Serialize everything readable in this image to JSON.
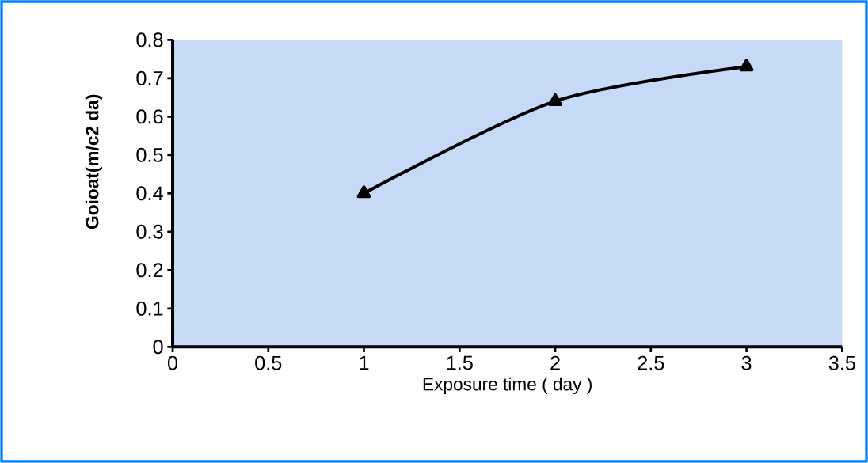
{
  "chart_data": {
    "type": "line",
    "xlabel": "Exposure time ( day )",
    "ylabel": "Goioat(m/c2  da)",
    "x": [
      1,
      2,
      3
    ],
    "series": [
      {
        "color": "#000000",
        "values": [
          0.4,
          0.64,
          0.73
        ]
      }
    ],
    "xlim": [
      0,
      3.5
    ],
    "xticks": [
      0,
      0.5,
      1,
      1.5,
      2,
      2.5,
      3,
      3.5
    ],
    "ylim": [
      0,
      0.8
    ],
    "yticks": [
      0,
      0.1,
      0.2,
      0.3,
      0.4,
      0.5,
      0.6,
      0.7,
      0.8
    ],
    "marker": "triangle"
  }
}
